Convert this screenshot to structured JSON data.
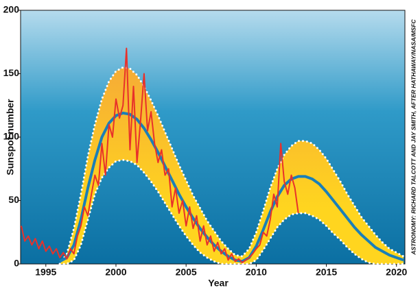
{
  "chart_data": {
    "type": "line",
    "x_label": "Year",
    "y_label": "Sunspot number",
    "credit": "ASTRONOMY: RICHARD TALCOTT AND JAY SMITH, AFTER HATHAWAY/NASA/MSFC",
    "xlim": [
      1993.2,
      2020.6
    ],
    "xticks": [
      1995,
      2000,
      2005,
      2010,
      2015,
      2020
    ],
    "ylim": [
      0,
      200
    ],
    "yticks": [
      0,
      50,
      100,
      150,
      200
    ],
    "x": [
      1996,
      1996.5,
      1997,
      1997.5,
      1998,
      1998.5,
      1999,
      1999.5,
      2000,
      2000.5,
      2001,
      2001.5,
      2002,
      2002.5,
      2003,
      2003.5,
      2004,
      2004.5,
      2005,
      2005.5,
      2006,
      2006.5,
      2007,
      2007.5,
      2008,
      2008.5,
      2009,
      2009.5,
      2010,
      2010.5,
      2011,
      2011.5,
      2012,
      2012.5,
      2013,
      2013.5,
      2014,
      2014.5,
      2015,
      2015.5,
      2016,
      2016.5,
      2017,
      2017.5,
      2018,
      2018.5,
      2019,
      2019.5,
      2020,
      2020.5
    ],
    "band": {
      "color_top": "#f4a43a",
      "color_bottom": "#ffd51f",
      "upper": [
        0,
        8,
        28,
        55,
        85,
        110,
        130,
        144,
        152,
        155,
        154,
        149,
        140,
        129,
        117,
        104,
        91,
        78,
        66,
        54,
        44,
        34,
        26,
        18,
        12,
        7,
        6,
        12,
        25,
        42,
        60,
        75,
        86,
        93,
        97,
        97,
        95,
        90,
        83,
        74,
        65,
        55,
        46,
        37,
        30,
        23,
        17,
        12,
        9,
        6
      ],
      "lower": [
        0,
        0,
        3,
        15,
        35,
        55,
        68,
        76,
        81,
        82,
        81,
        78,
        72,
        65,
        57,
        48,
        39,
        30,
        22,
        15,
        9,
        5,
        2,
        0,
        0,
        0,
        0,
        0,
        3,
        11,
        20,
        29,
        35,
        39,
        40,
        40,
        38,
        35,
        30,
        24,
        19,
        13,
        8,
        4,
        1,
        0,
        0,
        0,
        0,
        0
      ],
      "line_color": "#ffffff"
    },
    "series": [
      {
        "color": "#1a7fb8",
        "values": [
          2,
          5,
          15,
          35,
          60,
          82,
          100,
          111,
          117,
          119,
          118,
          114,
          107,
          98,
          88,
          77,
          66,
          55,
          45,
          36,
          28,
          21,
          15,
          10,
          6,
          3,
          2,
          5,
          14,
          27,
          41,
          53,
          62,
          67,
          69,
          69,
          67,
          63,
          57,
          50,
          43,
          36,
          29,
          23,
          18,
          13,
          10,
          7,
          5,
          3
        ]
      },
      {
        "color": "#e8312a",
        "x": [
          1993.25,
          1993.5,
          1993.75,
          1994,
          1994.25,
          1994.5,
          1994.75,
          1995,
          1995.25,
          1995.5,
          1995.75,
          1996,
          1996.25,
          1996.5,
          1996.75,
          1997,
          1997.25,
          1997.5,
          1997.75,
          1998,
          1998.25,
          1998.5,
          1998.75,
          1999,
          1999.25,
          1999.5,
          1999.75,
          2000,
          2000.25,
          2000.5,
          2000.75,
          2001,
          2001.25,
          2001.5,
          2001.75,
          2002,
          2002.25,
          2002.5,
          2002.75,
          2003,
          2003.25,
          2003.5,
          2003.75,
          2004,
          2004.25,
          2004.5,
          2004.75,
          2005,
          2005.25,
          2005.5,
          2005.75,
          2006,
          2006.25,
          2006.5,
          2006.75,
          2007,
          2007.25,
          2007.5,
          2007.75,
          2008,
          2008.25,
          2008.5,
          2008.75,
          2009,
          2009.25,
          2009.5,
          2009.75,
          2010,
          2010.25,
          2010.5,
          2010.75,
          2011,
          2011.25,
          2011.5,
          2011.75,
          2012,
          2012.25,
          2012.5,
          2012.75,
          2013
        ],
        "values": [
          30,
          18,
          22,
          15,
          20,
          12,
          18,
          10,
          14,
          8,
          12,
          5,
          9,
          4,
          12,
          8,
          22,
          30,
          45,
          38,
          55,
          70,
          62,
          95,
          70,
          110,
          100,
          130,
          115,
          125,
          170,
          90,
          140,
          80,
          112,
          150,
          105,
          120,
          95,
          80,
          90,
          70,
          75,
          45,
          60,
          40,
          50,
          30,
          45,
          28,
          38,
          18,
          30,
          15,
          22,
          10,
          17,
          8,
          12,
          3,
          8,
          2,
          4,
          1,
          3,
          5,
          8,
          12,
          15,
          25,
          22,
          35,
          55,
          45,
          95,
          65,
          55,
          70,
          60,
          40
        ]
      }
    ]
  }
}
